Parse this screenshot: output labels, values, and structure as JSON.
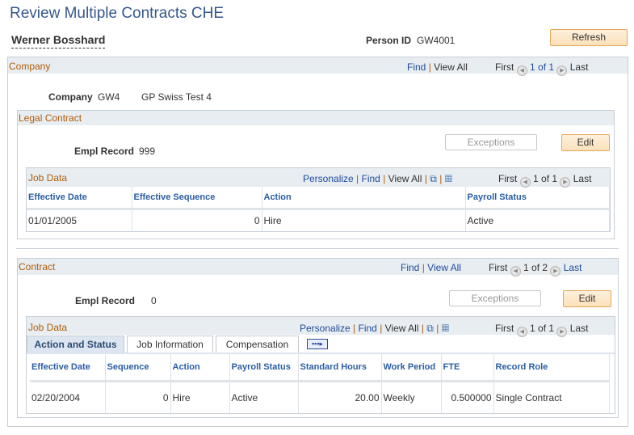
{
  "page": {
    "title": "Review Multiple Contracts CHE",
    "person_name": "Werner Bosshard",
    "person_id_label": "Person ID",
    "person_id": "GW4001",
    "refresh": "Refresh"
  },
  "company": {
    "section": "Company",
    "find": "Find",
    "view_all": "View All",
    "first": "First",
    "count": "1 of 1",
    "last": "Last",
    "label": "Company",
    "code": "GW4",
    "desc": "GP Swiss Test 4"
  },
  "legal": {
    "section": "Legal Contract",
    "empl_label": "Empl Record",
    "empl": "999",
    "exceptions": "Exceptions",
    "edit": "Edit",
    "grid": {
      "title": "Job Data",
      "personalize": "Personalize",
      "find": "Find",
      "view_all": "View All",
      "first": "First",
      "count": "1 of 1",
      "last": "Last",
      "columns": [
        "Effective Date",
        "Effective Sequence",
        "Action",
        "Payroll Status"
      ],
      "rows": [
        [
          "01/01/2005",
          "0",
          "Hire",
          "Active"
        ]
      ]
    }
  },
  "contract": {
    "section": "Contract",
    "find": "Find",
    "view_all": "View All",
    "first": "First",
    "count": "1 of 2",
    "last": "Last",
    "empl_label": "Empl Record",
    "empl": "0",
    "exceptions": "Exceptions",
    "edit": "Edit",
    "grid": {
      "title": "Job Data",
      "personalize": "Personalize",
      "find": "Find",
      "view_all": "View All",
      "first": "First",
      "count": "1 of 1",
      "last": "Last",
      "tabs": [
        "Action and Status",
        "Job Information",
        "Compensation"
      ],
      "columns": [
        "Effective Date",
        "Sequence",
        "Action",
        "Payroll Status",
        "Standard Hours",
        "Work Period",
        "FTE",
        "Record Role"
      ],
      "rows": [
        [
          "02/20/2004",
          "0",
          "Hire",
          "Active",
          "20.00",
          "Weekly",
          "0.500000",
          "Single Contract"
        ]
      ]
    }
  }
}
